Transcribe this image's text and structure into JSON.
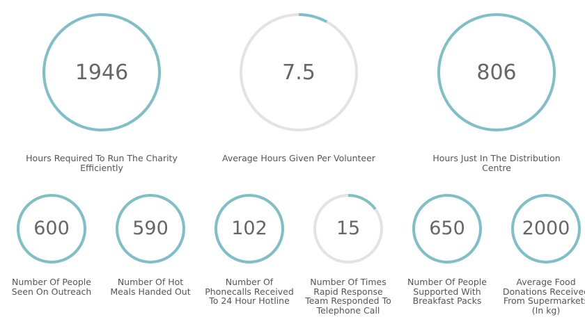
{
  "colors": {
    "accent": "#7fbfc6",
    "track": "#e3e3e3",
    "text": "#555555",
    "value_text": "#666666"
  },
  "stats_large": [
    {
      "value": "1946",
      "label": "Hours Required To Run The Charity Efficiently",
      "progress": 1.0
    },
    {
      "value": "7.5",
      "label": "Average Hours Given Per Volunteer",
      "progress": 0.08
    },
    {
      "value": "806",
      "label": "Hours Just In The Distribution Centre",
      "progress": 1.0
    }
  ],
  "stats_small": [
    {
      "value": "600",
      "label": "Number Of People Seen On Outreach",
      "progress": 1.0
    },
    {
      "value": "590",
      "label": "Number Of Hot Meals Handed Out",
      "progress": 1.0
    },
    {
      "value": "102",
      "label": "Number Of Phonecalls Received To 24 Hour Hotline",
      "progress": 1.0
    },
    {
      "value": "15",
      "label": "Number Of Times Rapid Response Team Responded To Telephone Call",
      "progress": 0.15
    },
    {
      "value": "650",
      "label": "Number Of People Supported With Breakfast Packs",
      "progress": 1.0
    },
    {
      "value": "2000",
      "label": "Average Food Donations Received From Supermarkets (In kg)",
      "progress": 1.0
    }
  ]
}
